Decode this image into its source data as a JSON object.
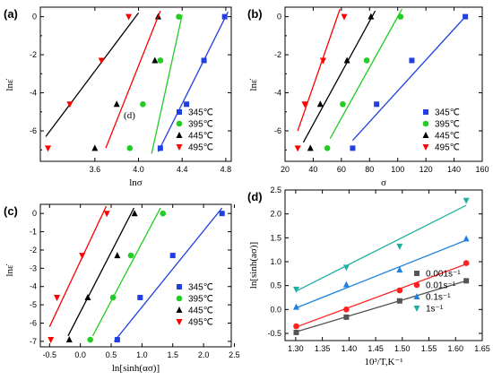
{
  "figure": {
    "symbols": {
      "epsilon_dot": "ε̇",
      "epsilon_dot_b": "ε̇"
    }
  },
  "chart_data": [
    {
      "panel_label": "(a)",
      "type": "scatter",
      "xlabel": "lnσ",
      "ylabel": "lnε̇",
      "xlim": [
        3.1,
        4.85
      ],
      "ylim": [
        -7.6,
        0.5
      ],
      "xticks": [
        "3.6",
        "4.0",
        "4.4",
        "4.8"
      ],
      "yticks": [
        "-6",
        "-4",
        "-2",
        "0"
      ],
      "annotation": "(d)",
      "legend_position": "bottom-right",
      "series": [
        {
          "name": "345℃",
          "color": "#1f3fe0",
          "marker": "square",
          "x": [
            4.2,
            4.44,
            4.6,
            4.79
          ],
          "y": [
            -6.91,
            -4.6,
            -2.3,
            0.0
          ],
          "fit": [
            [
              4.18,
              -7.1
            ],
            [
              4.82,
              0.25
            ]
          ]
        },
        {
          "name": "395℃",
          "color": "#22cc22",
          "marker": "circle",
          "x": [
            3.92,
            4.04,
            4.2,
            4.37
          ],
          "y": [
            -6.91,
            -4.6,
            -2.3,
            0.0
          ],
          "fit": [
            [
              4.12,
              -7.2
            ],
            [
              4.4,
              0.1
            ]
          ]
        },
        {
          "name": "445℃",
          "color": "#000000",
          "marker": "triangle",
          "x": [
            3.6,
            3.8,
            4.15,
            4.18
          ],
          "y": [
            -6.91,
            -4.6,
            -2.3,
            0.0
          ],
          "fit": [
            [
              3.15,
              -6.3
            ],
            [
              4.0,
              0.2
            ]
          ]
        },
        {
          "name": "495℃",
          "color": "#ff0000",
          "marker": "triangle-down",
          "x": [
            3.17,
            3.37,
            3.66,
            3.91
          ],
          "y": [
            -6.91,
            -4.6,
            -2.3,
            0.0
          ],
          "fit": [
            [
              3.7,
              -6.9
            ],
            [
              4.2,
              0.3
            ]
          ]
        }
      ]
    },
    {
      "panel_label": "(b)",
      "type": "scatter",
      "xlabel": "σ",
      "ylabel": "lnε̇",
      "xlim": [
        20,
        160
      ],
      "ylim": [
        -7.6,
        0.5
      ],
      "xticks": [
        "20",
        "40",
        "60",
        "80",
        "100",
        "120",
        "140",
        "160"
      ],
      "yticks": [
        "-6",
        "-4",
        "-2",
        "0"
      ],
      "legend_position": "bottom-right",
      "series": [
        {
          "name": "345℃",
          "color": "#1f3fe0",
          "marker": "square",
          "x": [
            68,
            85,
            110,
            148
          ],
          "y": [
            -6.91,
            -4.6,
            -2.3,
            0.0
          ],
          "fit": [
            [
              68,
              -6.5
            ],
            [
              148,
              0.0
            ]
          ]
        },
        {
          "name": "395℃",
          "color": "#22cc22",
          "marker": "circle",
          "x": [
            50,
            61,
            78,
            102
          ],
          "y": [
            -6.91,
            -4.6,
            -2.3,
            0.0
          ],
          "fit": [
            [
              52,
              -6.4
            ],
            [
              103,
              0.4
            ]
          ]
        },
        {
          "name": "445℃",
          "color": "#000000",
          "marker": "triangle",
          "x": [
            38,
            45,
            64,
            81
          ],
          "y": [
            -6.91,
            -4.6,
            -2.3,
            0.0
          ],
          "fit": [
            [
              33,
              -6.6
            ],
            [
              84,
              0.3
            ]
          ]
        },
        {
          "name": "495℃",
          "color": "#ff0000",
          "marker": "triangle-down",
          "x": [
            29,
            34,
            47,
            62
          ],
          "y": [
            -6.91,
            -4.6,
            -2.3,
            0.0
          ],
          "fit": [
            [
              29,
              -6.0
            ],
            [
              59,
              0.4
            ]
          ]
        }
      ]
    },
    {
      "panel_label": "(c)",
      "type": "scatter",
      "xlabel": "ln[sinh(ασ)]",
      "ylabel": "lnε̇",
      "xlim": [
        -0.65,
        2.45
      ],
      "ylim": [
        -7.3,
        0.5
      ],
      "xticks": [
        "-0.5",
        "0.0",
        "0.5",
        "1.0",
        "1.5",
        "2.0",
        "2.5"
      ],
      "yticks": [
        "-7",
        "-6",
        "-5",
        "-4",
        "-3",
        "-2",
        "-1",
        "0"
      ],
      "legend_position": "bottom-right",
      "series": [
        {
          "name": "345℃",
          "color": "#1f3fe0",
          "marker": "square",
          "x": [
            0.6,
            0.97,
            1.5,
            2.3
          ],
          "y": [
            -6.91,
            -4.6,
            -2.3,
            0.0
          ],
          "fit": [
            [
              0.55,
              -7.0
            ],
            [
              2.3,
              0.3
            ]
          ]
        },
        {
          "name": "395℃",
          "color": "#22cc22",
          "marker": "circle",
          "x": [
            0.16,
            0.53,
            0.82,
            1.34
          ],
          "y": [
            -6.91,
            -4.6,
            -2.3,
            0.0
          ],
          "fit": [
            [
              0.2,
              -6.7
            ],
            [
              1.3,
              0.3
            ]
          ]
        },
        {
          "name": "445℃",
          "color": "#000000",
          "marker": "triangle",
          "x": [
            -0.18,
            0.12,
            0.6,
            0.88
          ],
          "y": [
            -6.91,
            -4.6,
            -2.3,
            0.0
          ],
          "fit": [
            [
              -0.2,
              -6.7
            ],
            [
              0.87,
              0.3
            ]
          ]
        },
        {
          "name": "495℃",
          "color": "#ff0000",
          "marker": "triangle-down",
          "x": [
            -0.48,
            -0.38,
            0.03,
            0.43
          ],
          "y": [
            -6.91,
            -4.6,
            -2.3,
            0.0
          ],
          "fit": [
            [
              -0.5,
              -6.2
            ],
            [
              0.42,
              0.4
            ]
          ]
        }
      ]
    },
    {
      "panel_label": "(d)",
      "type": "scatter",
      "xlabel": "10³/T,K⁻¹",
      "ylabel": "ln[sinh(aσ)]",
      "xlim": [
        1.28,
        1.65
      ],
      "ylim": [
        -0.65,
        2.5
      ],
      "xticks": [
        "1.30",
        "1.35",
        "1.40",
        "1.45",
        "1.50",
        "1.55",
        "1.60",
        "1.65"
      ],
      "yticks": [
        "-0.5",
        "0.0",
        "0.5",
        "1.0",
        "1.5",
        "2.0",
        "2.5"
      ],
      "legend_position": "bottom-right",
      "series": [
        {
          "name": "0.001s⁻¹",
          "color": "#555555",
          "marker": "square",
          "x": [
            1.301,
            1.395,
            1.495,
            1.62
          ],
          "y": [
            -0.48,
            -0.16,
            0.18,
            0.6
          ],
          "fit": [
            [
              1.3,
              -0.47
            ],
            [
              1.62,
              0.6
            ]
          ]
        },
        {
          "name": "0.01s⁻¹",
          "color": "#ff2020",
          "marker": "circle",
          "x": [
            1.301,
            1.395,
            1.495,
            1.62
          ],
          "y": [
            -0.35,
            0.0,
            0.4,
            0.97
          ],
          "fit": [
            [
              1.3,
              -0.37
            ],
            [
              1.62,
              0.95
            ]
          ]
        },
        {
          "name": "0.1s⁻¹",
          "color": "#2080e0",
          "marker": "triangle",
          "x": [
            1.301,
            1.395,
            1.495,
            1.62
          ],
          "y": [
            0.05,
            0.52,
            0.83,
            1.48
          ],
          "fit": [
            [
              1.3,
              0.03
            ],
            [
              1.62,
              1.45
            ]
          ]
        },
        {
          "name": "1s⁻¹",
          "color": "#20b0a0",
          "marker": "triangle-down",
          "x": [
            1.301,
            1.395,
            1.495,
            1.62
          ],
          "y": [
            0.42,
            0.88,
            1.32,
            2.28
          ],
          "fit": [
            [
              1.3,
              0.38
            ],
            [
              1.62,
              2.18
            ]
          ]
        }
      ]
    }
  ]
}
